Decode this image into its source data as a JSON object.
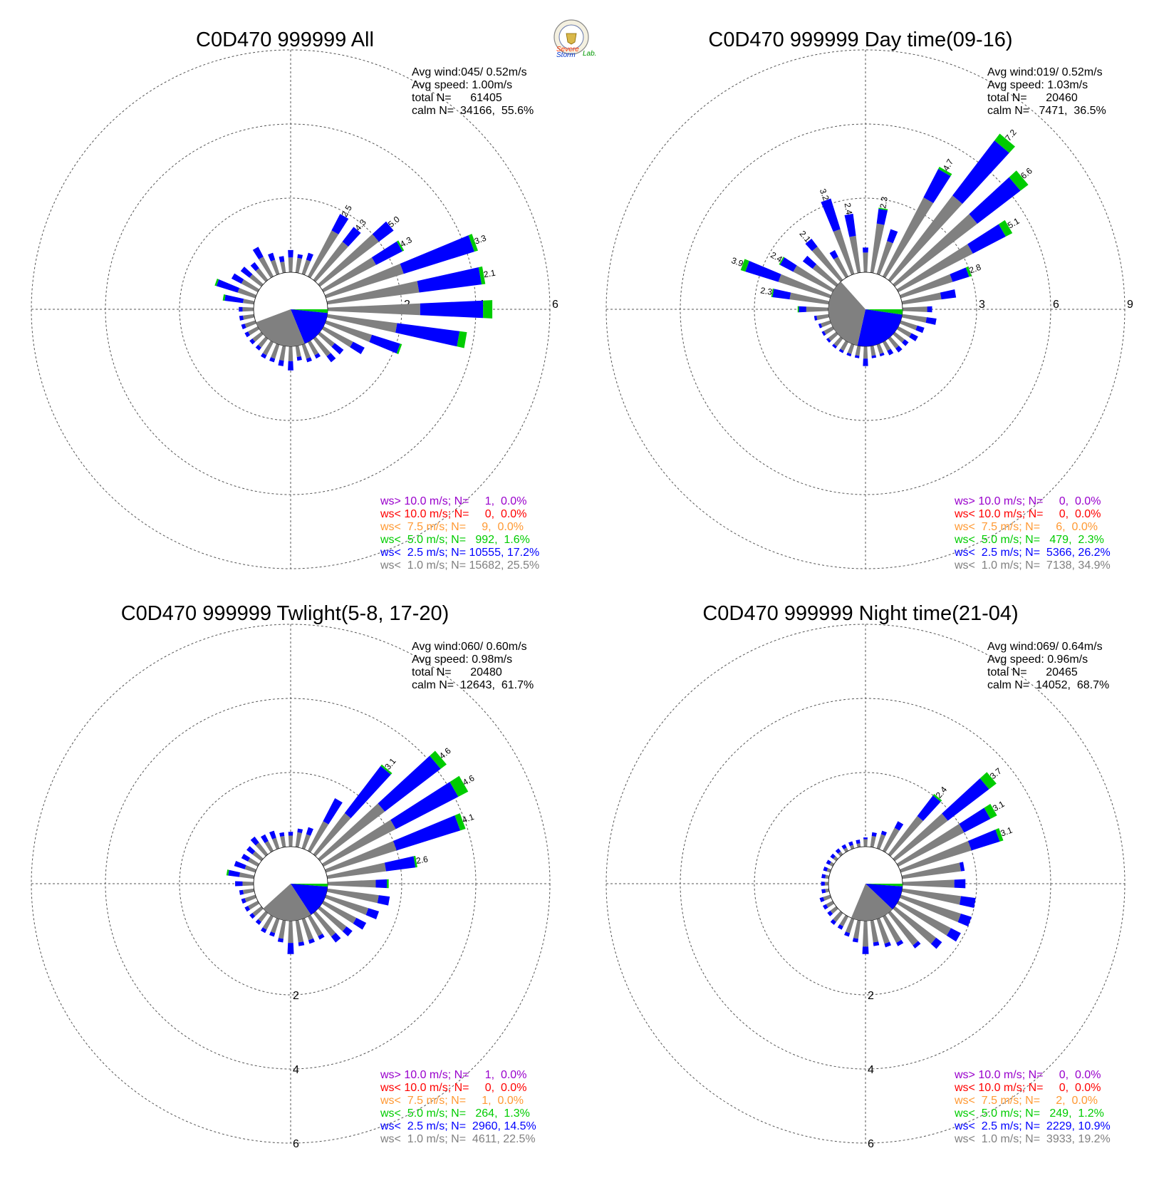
{
  "logo": {
    "word_severe": "Severe",
    "word_storm": "Storm",
    "word_lab": "Lab."
  },
  "colors": {
    "gray": "#808080",
    "blue": "#0000ff",
    "green": "#00cc00",
    "orange": "#ff9933",
    "red": "#ff0000",
    "purple": "#9900cc",
    "grid": "#555555"
  },
  "legend_classes": [
    {
      "prefix": "ws>",
      "threshold": "10.0 m/s;",
      "color": "#9900cc"
    },
    {
      "prefix": "ws<",
      "threshold": "10.0 m/s;",
      "color": "#ff0000"
    },
    {
      "prefix": "ws<",
      "threshold": " 7.5 m/s;",
      "color": "#ff9933"
    },
    {
      "prefix": "ws<",
      "threshold": " 5.0 m/s;",
      "color": "#00cc00"
    },
    {
      "prefix": "ws<",
      "threshold": " 2.5 m/s;",
      "color": "#0000ff"
    },
    {
      "prefix": "ws<",
      "threshold": " 1.0 m/s;",
      "color": "#808080"
    }
  ],
  "chart_data": [
    {
      "type": "wind-rose",
      "title": "C0D470 999999 All",
      "ring_labels": [
        "2",
        "4",
        "6"
      ],
      "ring_label_axis": "east",
      "stats": {
        "avg_wind": "Avg wind:045/ 0.52m/s",
        "avg_speed": "Avg speed: 1.00m/s",
        "total": "total N=      61405",
        "calm": "calm N=  34166,  55.6%"
      },
      "legend": [
        "N=     1,  0.0%",
        "N=     0,  0.0%",
        "N=     9,  0.0%",
        "N=   992,  1.6%",
        "N= 10555, 17.2%",
        "N= 15682, 25.5%"
      ],
      "peak_labels": [
        {
          "direction_deg": 30,
          "text": "2.5"
        },
        {
          "direction_deg": 40,
          "text": "4.3"
        },
        {
          "direction_deg": 50,
          "text": "5.0"
        },
        {
          "direction_deg": 60,
          "text": "4.3"
        },
        {
          "direction_deg": 70,
          "text": "3.3"
        },
        {
          "direction_deg": 80,
          "text": "2.1"
        }
      ],
      "calm_pie": {
        "gray_pct": 25.5,
        "blue_pct": 17.2,
        "green_pct": 1.6
      },
      "directions_deg_step": 10,
      "bars": [
        [
          0.4,
          0.2,
          0
        ],
        [
          0.4,
          0.1,
          0
        ],
        [
          0.4,
          0.2,
          0
        ],
        [
          1.4,
          0.5,
          0
        ],
        [
          1.3,
          0.5,
          0
        ],
        [
          2.0,
          0.5,
          0
        ],
        [
          1.6,
          0.8,
          0.05
        ],
        [
          2.2,
          2.0,
          0.1
        ],
        [
          2.5,
          1.7,
          0.1
        ],
        [
          2.5,
          1.7,
          0.25
        ],
        [
          1.9,
          1.7,
          0.2
        ],
        [
          1.3,
          0.8,
          0.05
        ],
        [
          0.9,
          0.35,
          0
        ],
        [
          0.5,
          0.3,
          0
        ],
        [
          0.6,
          0.2,
          0
        ],
        [
          0.4,
          0.1,
          0
        ],
        [
          0.4,
          0.1,
          0
        ],
        [
          0.3,
          0.1,
          0
        ],
        [
          0.4,
          0.25,
          0
        ],
        [
          0.4,
          0.15,
          0
        ],
        [
          0.4,
          0.1,
          0
        ],
        [
          0.4,
          0.1,
          0
        ],
        [
          0.3,
          0.1,
          0
        ],
        [
          0.3,
          0.1,
          0
        ],
        [
          0.3,
          0.1,
          0
        ],
        [
          0.3,
          0.1,
          0
        ],
        [
          0.3,
          0.1,
          0
        ],
        [
          0.3,
          0.1,
          0
        ],
        [
          0.3,
          0.5,
          0.05
        ],
        [
          0.5,
          0.6,
          0.05
        ],
        [
          0.5,
          0.3,
          0
        ],
        [
          0.4,
          0.3,
          0
        ],
        [
          0.4,
          0.2,
          0
        ],
        [
          0.6,
          0.3,
          0
        ],
        [
          0.4,
          0.2,
          0
        ],
        [
          0.3,
          0.15,
          0
        ]
      ]
    },
    {
      "type": "wind-rose",
      "title": "C0D470 999999 Day time(09-16)",
      "ring_labels": [
        "3",
        "6",
        "9"
      ],
      "ring_label_axis": "east",
      "stats": {
        "avg_wind": "Avg wind:019/ 0.52m/s",
        "avg_speed": "Avg speed: 1.03m/s",
        "total": "total N=      20460",
        "calm": "calm N=   7471,  36.5%"
      },
      "legend": [
        "N=     0,  0.0%",
        "N=     0,  0.0%",
        "N=     6,  0.0%",
        "N=   479,  2.3%",
        "N=  5366, 26.2%",
        "N=  7138, 34.9%"
      ],
      "peak_labels": [
        {
          "direction_deg": 10,
          "text": "2.3"
        },
        {
          "direction_deg": 30,
          "text": "4.7"
        },
        {
          "direction_deg": 40,
          "text": "7.2"
        },
        {
          "direction_deg": 50,
          "text": "6.6"
        },
        {
          "direction_deg": 60,
          "text": "5.1"
        },
        {
          "direction_deg": 70,
          "text": "2.8"
        },
        {
          "direction_deg": 280,
          "text": "2.3"
        },
        {
          "direction_deg": 290,
          "text": "3.9"
        },
        {
          "direction_deg": 300,
          "text": "2.4"
        },
        {
          "direction_deg": 320,
          "text": "2.1"
        },
        {
          "direction_deg": 340,
          "text": "3.2"
        },
        {
          "direction_deg": 350,
          "text": "2.4"
        }
      ],
      "calm_pie": {
        "gray_pct": 34.9,
        "blue_pct": 26.2,
        "green_pct": 2.3
      },
      "directions_deg_step": 10,
      "bars": [
        [
          0.8,
          0.2,
          0
        ],
        [
          2.0,
          0.6,
          0.05
        ],
        [
          1.4,
          0.5,
          0
        ],
        [
          3.6,
          1.3,
          0.1
        ],
        [
          4.3,
          2.8,
          0.35
        ],
        [
          4.2,
          2.2,
          0.4
        ],
        [
          3.4,
          1.5,
          0.3
        ],
        [
          2.2,
          0.7,
          0.1
        ],
        [
          1.6,
          0.6,
          0
        ],
        [
          1.0,
          0.2,
          0
        ],
        [
          1.0,
          0.4,
          0
        ],
        [
          0.7,
          0.3,
          0
        ],
        [
          0.6,
          0.3,
          0
        ],
        [
          0.5,
          0.2,
          0
        ],
        [
          0.5,
          0.2,
          0
        ],
        [
          0.4,
          0.2,
          0
        ],
        [
          0.4,
          0.1,
          0
        ],
        [
          0.4,
          0.1,
          0
        ],
        [
          0.5,
          0.3,
          0
        ],
        [
          0.4,
          0.1,
          0
        ],
        [
          0.4,
          0.1,
          0
        ],
        [
          0.4,
          0.1,
          0
        ],
        [
          0.4,
          0.1,
          0
        ],
        [
          0.4,
          0.1,
          0
        ],
        [
          0.4,
          0.1,
          0
        ],
        [
          0.4,
          0.1,
          0
        ],
        [
          0.5,
          0.1,
          0
        ],
        [
          0.9,
          0.3,
          0.05
        ],
        [
          1.6,
          0.7,
          0.05
        ],
        [
          2.2,
          1.4,
          0.2
        ],
        [
          1.8,
          0.6,
          0.05
        ],
        [
          1.2,
          0.5,
          0
        ],
        [
          1.7,
          0.4,
          0
        ],
        [
          0.9,
          0.3,
          0
        ],
        [
          1.9,
          1.3,
          0
        ],
        [
          1.5,
          0.9,
          0
        ]
      ]
    },
    {
      "type": "wind-rose",
      "title": "C0D470 999999 Twlight(5-8, 17-20)",
      "ring_labels": [
        "2",
        "4",
        "6"
      ],
      "ring_label_axis": "south",
      "stats": {
        "avg_wind": "Avg wind:060/ 0.60m/s",
        "avg_speed": "Avg speed: 0.98m/s",
        "total": "total N=      20480",
        "calm": "calm N=  12643,  61.7%"
      },
      "legend": [
        "N=     1,  0.0%",
        "N=     0,  0.0%",
        "N=     1,  0.0%",
        "N=   264,  1.3%",
        "N=  2960, 14.5%",
        "N=  4611, 22.5%"
      ],
      "peak_labels": [
        {
          "direction_deg": 40,
          "text": "3.1"
        },
        {
          "direction_deg": 50,
          "text": "4.6"
        },
        {
          "direction_deg": 60,
          "text": "4.6"
        },
        {
          "direction_deg": 70,
          "text": "4.1"
        },
        {
          "direction_deg": 80,
          "text": "2.6"
        }
      ],
      "calm_pie": {
        "gray_pct": 22.5,
        "blue_pct": 14.5,
        "green_pct": 1.3
      },
      "directions_deg_step": 10,
      "bars": [
        [
          0.3,
          0.1,
          0
        ],
        [
          0.4,
          0.1,
          0
        ],
        [
          0.4,
          0.2,
          0
        ],
        [
          0.9,
          0.7,
          0
        ],
        [
          1.4,
          1.6,
          0.05
        ],
        [
          2.2,
          1.9,
          0.2
        ],
        [
          2.2,
          1.9,
          0.3
        ],
        [
          2.0,
          1.8,
          0.15
        ],
        [
          1.6,
          0.8,
          0.05
        ],
        [
          1.3,
          0.3,
          0.05
        ],
        [
          1.4,
          0.3,
          0
        ],
        [
          1.2,
          0.3,
          0
        ],
        [
          1.0,
          0.3,
          0
        ],
        [
          0.9,
          0.2,
          0
        ],
        [
          0.8,
          0.2,
          0
        ],
        [
          0.6,
          0.1,
          0
        ],
        [
          0.6,
          0.1,
          0
        ],
        [
          0.6,
          0.1,
          0
        ],
        [
          0.6,
          0.3,
          0
        ],
        [
          0.5,
          0.1,
          0
        ],
        [
          0.4,
          0.1,
          0
        ],
        [
          0.4,
          0.1,
          0
        ],
        [
          0.3,
          0.1,
          0
        ],
        [
          0.3,
          0.1,
          0
        ],
        [
          0.3,
          0.1,
          0
        ],
        [
          0.3,
          0.1,
          0
        ],
        [
          0.3,
          0.1,
          0
        ],
        [
          0.3,
          0.2,
          0
        ],
        [
          0.4,
          0.3,
          0.05
        ],
        [
          0.3,
          0.3,
          0
        ],
        [
          0.3,
          0.2,
          0
        ],
        [
          0.3,
          0.2,
          0
        ],
        [
          0.4,
          0.2,
          0
        ],
        [
          0.3,
          0.2,
          0
        ],
        [
          0.3,
          0.2,
          0
        ],
        [
          0.3,
          0.1,
          0
        ]
      ]
    },
    {
      "type": "wind-rose",
      "title": "C0D470 999999 Night time(21-04)",
      "ring_labels": [
        "2",
        "4",
        "6"
      ],
      "ring_label_axis": "south",
      "stats": {
        "avg_wind": "Avg wind:069/ 0.64m/s",
        "avg_speed": "Avg speed: 0.96m/s",
        "total": "total N=      20465",
        "calm": "calm N=  14052,  68.7%"
      },
      "legend": [
        "N=     0,  0.0%",
        "N=     0,  0.0%",
        "N=     2,  0.0%",
        "N=   249,  1.2%",
        "N=  2229, 10.9%",
        "N=  3933, 19.2%"
      ],
      "peak_labels": [
        {
          "direction_deg": 40,
          "text": "2.4"
        },
        {
          "direction_deg": 50,
          "text": "3.7"
        },
        {
          "direction_deg": 60,
          "text": "3.1"
        },
        {
          "direction_deg": 70,
          "text": "3.1"
        }
      ],
      "calm_pie": {
        "gray_pct": 19.2,
        "blue_pct": 10.9,
        "green_pct": 1.2
      },
      "directions_deg_step": 10,
      "bars": [
        [
          0.2,
          0.05,
          0
        ],
        [
          0.3,
          0.1,
          0
        ],
        [
          0.4,
          0.1,
          0
        ],
        [
          0.7,
          0.2,
          0
        ],
        [
          1.3,
          0.7,
          0.05
        ],
        [
          1.8,
          1.4,
          0.25
        ],
        [
          2.0,
          0.8,
          0.2
        ],
        [
          2.0,
          0.8,
          0.1
        ],
        [
          1.6,
          0.1,
          0
        ],
        [
          1.4,
          0.3,
          0
        ],
        [
          1.6,
          0.4,
          0
        ],
        [
          1.7,
          0.3,
          0
        ],
        [
          1.6,
          0.3,
          0
        ],
        [
          1.4,
          0.2,
          0
        ],
        [
          1.1,
          0.1,
          0
        ],
        [
          0.8,
          0.1,
          0
        ],
        [
          0.7,
          0.1,
          0
        ],
        [
          0.6,
          0.1,
          0
        ],
        [
          0.7,
          0.2,
          0
        ],
        [
          0.5,
          0.1,
          0
        ],
        [
          0.4,
          0.1,
          0
        ],
        [
          0.3,
          0.1,
          0
        ],
        [
          0.3,
          0.1,
          0
        ],
        [
          0.2,
          0.1,
          0
        ],
        [
          0.2,
          0.1,
          0
        ],
        [
          0.2,
          0.1,
          0
        ],
        [
          0.1,
          0.1,
          0
        ],
        [
          0.1,
          0.1,
          0
        ],
        [
          0.1,
          0.1,
          0
        ],
        [
          0.1,
          0.1,
          0
        ],
        [
          0.1,
          0.1,
          0
        ],
        [
          0.1,
          0.1,
          0
        ],
        [
          0.1,
          0.1,
          0
        ],
        [
          0.1,
          0.1,
          0
        ],
        [
          0.1,
          0.1,
          0
        ],
        [
          0.1,
          0.1,
          0
        ]
      ]
    }
  ]
}
